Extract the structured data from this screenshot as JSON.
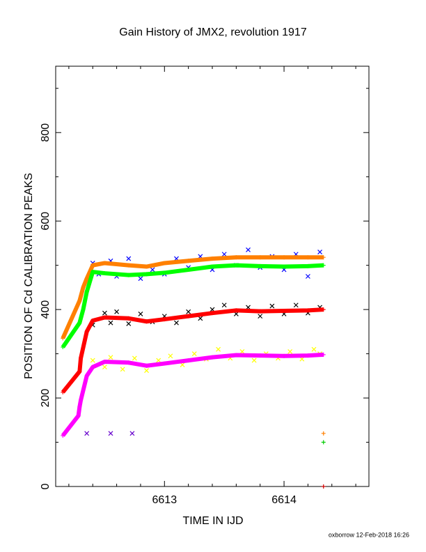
{
  "chart_data": {
    "type": "scatter",
    "title": "Gain History of JMX2, revolution 1917",
    "x_label": "TIME IN IJD",
    "y_label": "POSITION OF Cd CALIBRATION PEAKS",
    "footer": "oxborrow 12-Feb-2018 16:26",
    "xlim": [
      6612.09,
      6614.71
    ],
    "ylim": [
      0,
      950
    ],
    "xticks": [
      6613,
      6614
    ],
    "xminorticks": [
      6612.2,
      6612.4,
      6612.6,
      6612.8,
      6613.2,
      6613.4,
      6613.6,
      6613.8,
      6614.2,
      6614.4,
      6614.6
    ],
    "yticks": [
      0,
      200,
      400,
      600,
      800
    ],
    "yminorticks": [
      100,
      300,
      500,
      700,
      900
    ],
    "series": [
      {
        "color": "#0000ff",
        "marker": "x",
        "line": false,
        "x": [
          6612.4,
          6612.45,
          6612.55,
          6612.6,
          6612.7,
          6612.8,
          6612.9,
          6613.0,
          6613.1,
          6613.2,
          6613.3,
          6613.4,
          6613.5,
          6613.6,
          6613.7,
          6613.8,
          6613.9,
          6614.0,
          6614.1,
          6614.2,
          6614.3
        ],
        "values": [
          505,
          480,
          510,
          475,
          515,
          470,
          490,
          480,
          515,
          495,
          520,
          490,
          525,
          500,
          535,
          495,
          520,
          490,
          525,
          475,
          530
        ]
      },
      {
        "color": "#000000",
        "marker": "x",
        "line": false,
        "x": [
          6612.4,
          6612.5,
          6612.55,
          6612.6,
          6612.7,
          6612.8,
          6612.9,
          6613.0,
          6613.1,
          6613.2,
          6613.3,
          6613.4,
          6613.5,
          6613.6,
          6613.7,
          6613.8,
          6613.9,
          6614.0,
          6614.1,
          6614.2,
          6614.3
        ],
        "values": [
          365,
          392,
          370,
          395,
          368,
          390,
          372,
          385,
          370,
          395,
          380,
          400,
          410,
          390,
          405,
          385,
          408,
          390,
          410,
          392,
          405
        ]
      },
      {
        "color": "#ffff00",
        "marker": "x",
        "line": false,
        "x": [
          6612.4,
          6612.5,
          6612.55,
          6612.65,
          6612.75,
          6612.85,
          6612.95,
          6613.05,
          6613.15,
          6613.25,
          6613.35,
          6613.45,
          6613.55,
          6613.65,
          6613.75,
          6613.85,
          6613.95,
          6614.05,
          6614.15,
          6614.25,
          6614.3
        ],
        "values": [
          285,
          270,
          292,
          265,
          290,
          262,
          285,
          295,
          275,
          300,
          288,
          310,
          290,
          305,
          285,
          300,
          290,
          305,
          288,
          310,
          300
        ]
      },
      {
        "color": "#ff8000",
        "marker": "+",
        "line": true,
        "x": [
          6612.15,
          6612.29,
          6612.32,
          6612.35,
          6612.4,
          6612.5,
          6612.7,
          6612.85,
          6613.0,
          6613.2,
          6613.4,
          6613.6,
          6613.8,
          6614.0,
          6614.2,
          6614.33
        ],
        "values": [
          335,
          420,
          450,
          470,
          500,
          505,
          500,
          497,
          505,
          510,
          515,
          518,
          518,
          518,
          518,
          518
        ]
      },
      {
        "color": "#00ff00",
        "marker": "+",
        "line": true,
        "x": [
          6612.15,
          6612.29,
          6612.32,
          6612.35,
          6612.4,
          6612.5,
          6612.7,
          6612.85,
          6613.0,
          6613.2,
          6613.4,
          6613.6,
          6613.8,
          6614.0,
          6614.2,
          6614.33
        ],
        "values": [
          315,
          370,
          400,
          440,
          485,
          482,
          478,
          480,
          483,
          490,
          497,
          500,
          498,
          497,
          498,
          500
        ]
      },
      {
        "color": "#ff0000",
        "marker": "+",
        "line": true,
        "x": [
          6612.15,
          6612.29,
          6612.3,
          6612.35,
          6612.4,
          6612.5,
          6612.7,
          6612.85,
          6613.0,
          6613.2,
          6613.4,
          6613.6,
          6613.8,
          6614.0,
          6614.2,
          6614.33
        ],
        "values": [
          213,
          260,
          290,
          350,
          375,
          382,
          380,
          373,
          378,
          385,
          392,
          398,
          396,
          397,
          398,
          400
        ]
      },
      {
        "color": "#ff00ff",
        "marker": "+",
        "line": true,
        "x": [
          6612.15,
          6612.28,
          6612.29,
          6612.3,
          6612.35,
          6612.4,
          6612.5,
          6612.7,
          6612.85,
          6613.0,
          6613.2,
          6613.4,
          6613.6,
          6613.8,
          6614.0,
          6614.2,
          6614.33
        ],
        "values": [
          115,
          160,
          180,
          195,
          250,
          270,
          282,
          280,
          273,
          278,
          285,
          292,
          297,
          296,
          295,
          296,
          298
        ]
      },
      {
        "color": "#6600cc",
        "marker": "x",
        "line": false,
        "x": [
          6612.35,
          6612.55,
          6612.73
        ],
        "values": [
          120,
          120,
          120
        ]
      },
      {
        "color": "#ff8000",
        "marker": "+",
        "line": false,
        "x": [
          6614.33
        ],
        "values": [
          120
        ]
      },
      {
        "color": "#00cc00",
        "marker": "+",
        "line": false,
        "x": [
          6614.33
        ],
        "values": [
          100
        ]
      },
      {
        "color": "#cc0000",
        "marker": "+",
        "line": false,
        "x": [
          6614.33
        ],
        "values": [
          0
        ]
      }
    ]
  }
}
